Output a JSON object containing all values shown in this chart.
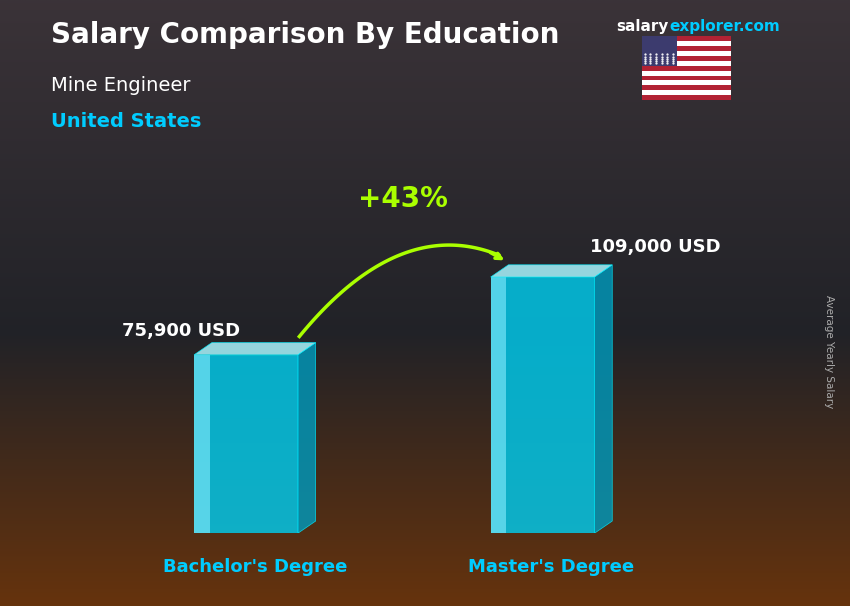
{
  "title_main": "Salary Comparison By Education",
  "title_site": "salary",
  "title_site2": "explorer.com",
  "subtitle1": "Mine Engineer",
  "subtitle2": "United States",
  "categories": [
    "Bachelor's Degree",
    "Master's Degree"
  ],
  "values": [
    75900,
    109000
  ],
  "value_labels": [
    "75,900 USD",
    "109,000 USD"
  ],
  "pct_change": "+43%",
  "bar_front_color": "#00ccee",
  "bar_stripe_color": "#88eeff",
  "bar_top_color": "#aaf5ff",
  "bar_side_color": "#0099bb",
  "ylabel": "Average Yearly Salary",
  "arrow_color": "#aaff00",
  "cat_label_color": "#00ccff",
  "title_color": "#ffffff",
  "subtitle1_color": "#ffffff",
  "subtitle2_color": "#00ccff",
  "value_label_color": "#ffffff",
  "site_color1": "#ffffff",
  "site_color2": "#00ccff",
  "max_val": 130000
}
